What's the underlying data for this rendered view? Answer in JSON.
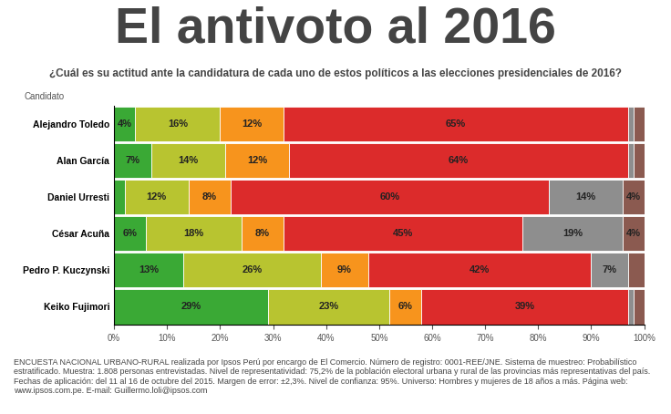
{
  "chart_data": {
    "type": "bar",
    "title": "El antivoto al 2016",
    "subtitle": "¿Cuál es su actitud ante la candidatura de cada uno de estos políticos a las elecciones presidenciales de 2016?",
    "ylabel": "Candidato",
    "footer": "ENCUESTA NACIONAL URBANO-RURAL realizada por Ipsos Perú por encargo de El Comercio. Número de registro: 0001-REE/JNE. Sistema de muestreo: Probabilístico estratificado. Muestra: 1.808 personas entrevistadas. Nivel de representatividad: 75,2% de la población electoral urbana y rural de las provincias más representativas del país. Fechas de aplicación: del 11 al 16 de octubre del 2015. Margen de error: ±2,3%. Nivel de confianza: 95%. Universo: Hombres y mujeres de 18 años a más. Página web: www.ipsos.com.pe. E-mail: Guillermo.loli@ipsos.com",
    "orientation": "horizontal",
    "stacked": true,
    "data_labels": true,
    "grid": false,
    "categories": [
      "Alejandro Toledo",
      "Alan García",
      "Daniel Urresti",
      "César Acuña",
      "Pedro P. Kuczynski",
      "Keiko Fujimori"
    ],
    "series": [
      {
        "color": "#3aa935",
        "values": [
          4,
          7,
          2,
          6,
          13,
          29
        ],
        "value_labels": [
          "4%",
          "7%",
          null,
          "6%",
          "13%",
          "29%"
        ]
      },
      {
        "color": "#b8c430",
        "values": [
          16,
          14,
          12,
          18,
          26,
          23
        ],
        "value_labels": [
          "16%",
          "14%",
          "12%",
          "18%",
          "26%",
          "23%"
        ]
      },
      {
        "color": "#f7941d",
        "values": [
          12,
          12,
          8,
          8,
          9,
          6
        ],
        "value_labels": [
          "12%",
          "12%",
          "8%",
          "8%",
          "9%",
          "6%"
        ]
      },
      {
        "color": "#dc2b2b",
        "values": [
          65,
          64,
          60,
          45,
          42,
          39
        ],
        "value_labels": [
          "65%",
          "64%",
          "60%",
          "45%",
          "42%",
          "39%"
        ]
      },
      {
        "color": "#8e8e8e",
        "values": [
          1,
          1,
          14,
          19,
          7,
          1
        ],
        "value_labels": [
          null,
          null,
          "14%",
          "19%",
          "7%",
          null
        ]
      },
      {
        "color": "#8b5a50",
        "values": [
          2,
          2,
          4,
          4,
          3,
          2
        ],
        "value_labels": [
          null,
          null,
          "4%",
          "4%",
          null,
          null
        ]
      }
    ],
    "xlim": [
      0,
      100
    ],
    "xticks": [
      {
        "value": 0,
        "label": "0%"
      },
      {
        "value": 10,
        "label": "10%"
      },
      {
        "value": 20,
        "label": "20%"
      },
      {
        "value": 30,
        "label": "30%"
      },
      {
        "value": 40,
        "label": "40%"
      },
      {
        "value": 50,
        "label": "50%"
      },
      {
        "value": 60,
        "label": "60%"
      },
      {
        "value": 70,
        "label": "70%"
      },
      {
        "value": 80,
        "label": "80%"
      },
      {
        "value": 90,
        "label": "90%"
      },
      {
        "value": 100,
        "label": "100%"
      }
    ]
  }
}
